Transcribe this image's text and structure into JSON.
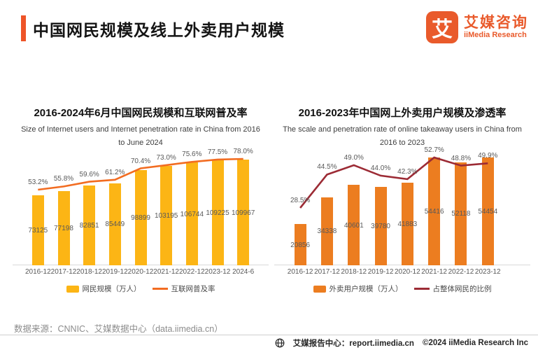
{
  "header": {
    "title": "中国网民规模及线上外卖用户规模"
  },
  "logo": {
    "mark": "艾",
    "name_cn": "艾媒咨询",
    "name_en": "iiMedia Research"
  },
  "colors": {
    "accent": "#EE5428",
    "logo": "#E95A2B",
    "left_bar": "#FCB515",
    "left_line": "#F26C21",
    "right_bar": "#EC7D20",
    "right_line": "#9C2B35",
    "axis": "#D9D9D9"
  },
  "chart_data": [
    {
      "type": "bar+line",
      "title": "2016-2024年6月中国网民规模和互联网普及率",
      "subtitle": "Size of Internet users and Internet penetration rate in China from 2016 to June 2024",
      "categories": [
        "2016-12",
        "2017-12",
        "2018-12",
        "2019-12",
        "2020-12",
        "2021-12",
        "2022-12",
        "2023-12",
        "2024-6"
      ],
      "series": [
        {
          "name": "网民规模（万人）",
          "type": "bar",
          "color": "#FCB515",
          "values": [
            73125,
            77198,
            82851,
            85449,
            98899,
            103195,
            106744,
            109225,
            109967
          ]
        },
        {
          "name": "互联网普及率",
          "type": "line",
          "color": "#F26C21",
          "values": [
            53.2,
            55.8,
            59.6,
            61.2,
            70.4,
            73.0,
            75.6,
            77.5,
            78.0
          ]
        }
      ],
      "ylabel": "",
      "grid": false,
      "legend_position": "bottom"
    },
    {
      "type": "bar+line",
      "title": "2016-2023年中国网上外卖用户规模及渗透率",
      "subtitle": "The scale and penetration rate of online takeaway users in China from 2016 to 2023",
      "categories": [
        "2016-12",
        "2017-12",
        "2018-12",
        "2019-12",
        "2020-12",
        "2021-12",
        "2022-12",
        "2023-12"
      ],
      "series": [
        {
          "name": "外卖用户规模（万人）",
          "type": "bar",
          "color": "#EC7D20",
          "values": [
            20856,
            34338,
            40601,
            39780,
            41883,
            54416,
            52118,
            54454
          ]
        },
        {
          "name": "占整体网民的比例",
          "type": "line",
          "color": "#9C2B35",
          "values": [
            28.5,
            44.5,
            49.0,
            44.0,
            42.3,
            52.7,
            48.8,
            49.9
          ]
        }
      ],
      "ylabel": "",
      "grid": false,
      "legend_position": "bottom"
    }
  ],
  "footer": {
    "source": "数据来源：CNNIC、艾媒数据中心（data.iimedia.cn）",
    "report_center": "艾媒报告中心：report.iimedia.cn",
    "copyright": "©2024  iiMedia Research Inc"
  }
}
